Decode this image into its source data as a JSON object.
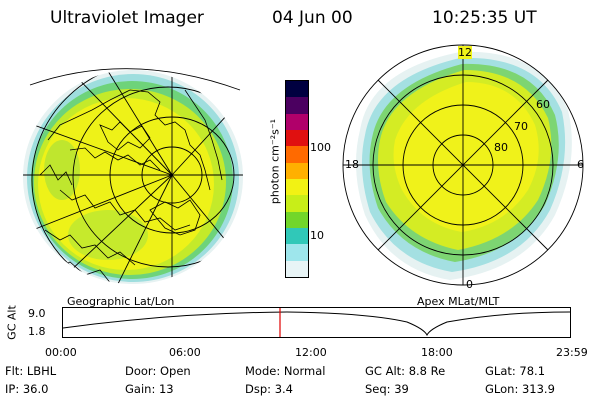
{
  "header": {
    "title": "Ultraviolet Imager",
    "date": "04 Jun 00",
    "time": "10:25:35 UT"
  },
  "colorbar": {
    "unit_label": "photon cm⁻²s⁻¹",
    "tick_labels": [
      "100",
      "10"
    ],
    "colors_top_to_bottom": [
      "#000040",
      "#4b0060",
      "#b0006a",
      "#e01010",
      "#ff6a00",
      "#ffb000",
      "#f2f214",
      "#c8ee18",
      "#72d62a",
      "#30c8b8",
      "#9ee6ec",
      "#e8f4f6"
    ]
  },
  "geo_panel": {
    "caption": "Geographic Lat/Lon"
  },
  "mag_panel": {
    "caption": "Apex MLat/MLT",
    "mlt_labels": {
      "top": "12",
      "right": "6",
      "bottom": "0",
      "left": "18"
    },
    "lat_labels": [
      "60",
      "70",
      "80"
    ]
  },
  "altitude_plot": {
    "ylabel": "GC Alt",
    "y_ticks": [
      "9.0",
      "1.8"
    ],
    "x_ticks": [
      "00:00",
      "06:00",
      "12:00",
      "18:00",
      "23:59"
    ]
  },
  "info_rows": [
    [
      {
        "key": "Flt:",
        "value": "LBHL"
      },
      {
        "key": "Door:",
        "value": "Open"
      },
      {
        "key": "Mode:",
        "value": "Normal"
      },
      {
        "key": "GC Alt:",
        "value": "8.8 Re"
      },
      {
        "key": "GLat:",
        "value": "78.1"
      }
    ],
    [
      {
        "key": "IP:",
        "value": "36.0"
      },
      {
        "key": "Gain:",
        "value": "13"
      },
      {
        "key": "Dsp:",
        "value": "3.4"
      },
      {
        "key": "Seq:",
        "value": "39"
      },
      {
        "key": "GLon:",
        "value": "313.9"
      }
    ]
  ]
}
